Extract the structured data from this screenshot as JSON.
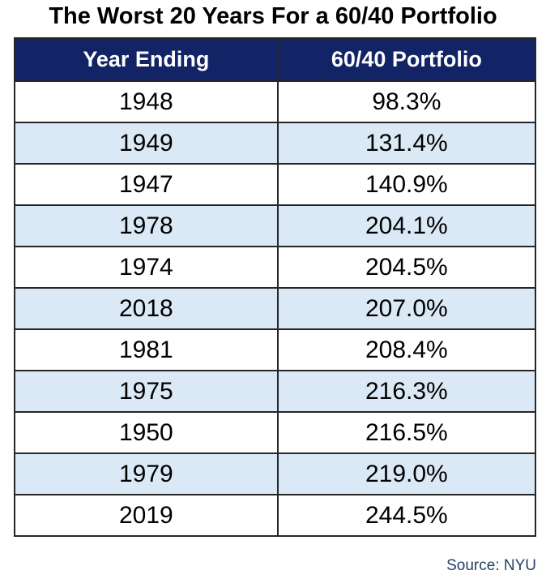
{
  "title": "The Worst 20 Years For a 60/40 Portfolio",
  "table": {
    "columns": [
      "Year Ending",
      "60/40 Portfolio"
    ],
    "rows": [
      {
        "year": "1948",
        "value": "98.3%"
      },
      {
        "year": "1949",
        "value": "131.4%"
      },
      {
        "year": "1947",
        "value": "140.9%"
      },
      {
        "year": "1978",
        "value": "204.1%"
      },
      {
        "year": "1974",
        "value": "204.5%"
      },
      {
        "year": "2018",
        "value": "207.0%"
      },
      {
        "year": "1981",
        "value": "208.4%"
      },
      {
        "year": "1975",
        "value": "216.3%"
      },
      {
        "year": "1950",
        "value": "216.5%"
      },
      {
        "year": "1979",
        "value": "219.0%"
      },
      {
        "year": "2019",
        "value": "244.5%"
      }
    ]
  },
  "source": "Source: NYU",
  "colors": {
    "title_text": "#000000",
    "header_bg": "#122465",
    "header_text": "#ffffff",
    "row_bg": "#ffffff",
    "row_alt_bg": "#dbe9f6",
    "cell_text": "#000000",
    "border": "#262626",
    "source_text": "#263f66"
  },
  "chart_data": {
    "type": "table",
    "title": "The Worst 20 Years For a 60/40 Portfolio",
    "columns": [
      "Year Ending",
      "60/40 Portfolio"
    ],
    "rows": [
      [
        "1948",
        "98.3%"
      ],
      [
        "1949",
        "131.4%"
      ],
      [
        "1947",
        "140.9%"
      ],
      [
        "1978",
        "204.1%"
      ],
      [
        "1974",
        "204.5%"
      ],
      [
        "2018",
        "207.0%"
      ],
      [
        "1981",
        "208.4%"
      ],
      [
        "1975",
        "216.3%"
      ],
      [
        "1950",
        "216.5%"
      ],
      [
        "1979",
        "219.0%"
      ],
      [
        "2019",
        "244.5%"
      ]
    ],
    "values_numeric": [
      98.3,
      131.4,
      140.9,
      204.1,
      204.5,
      207.0,
      208.4,
      216.3,
      216.5,
      219.0,
      244.5
    ],
    "layout_hints": {
      "header_style": "dark navy background, white bold text",
      "zebra_striping": "white / light blue alternating starting white",
      "source_position": "bottom-right"
    },
    "source": "Source: NYU"
  }
}
